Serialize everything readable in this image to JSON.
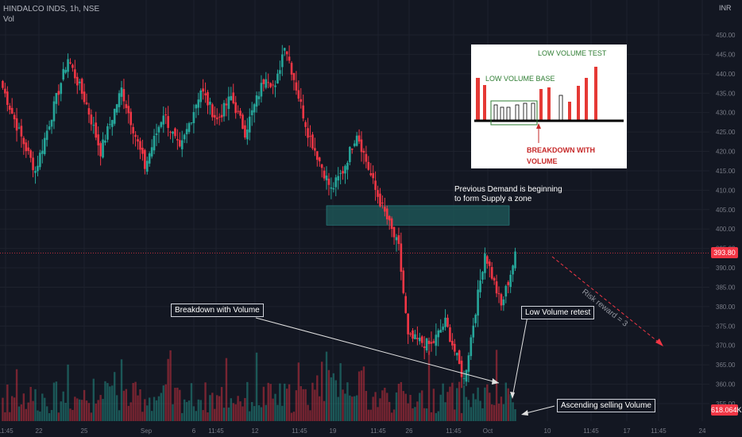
{
  "header": {
    "symbol": "HINDALCO INDS, 1h, NSE",
    "vol_label": "Vol",
    "currency": "INR"
  },
  "price_axis": {
    "ticks": [
      "450.00",
      "445.00",
      "440.00",
      "435.00",
      "430.00",
      "425.00",
      "420.00",
      "415.00",
      "410.00",
      "405.00",
      "400.00",
      "395.00",
      "390.00",
      "385.00",
      "380.00",
      "375.00",
      "370.00",
      "365.00",
      "360.00",
      "355.00"
    ],
    "current_price": "393.80",
    "current_volume": "618.064K"
  },
  "time_axis": {
    "ticks": [
      "11:45",
      "22",
      "25",
      "Sep",
      "6",
      "11:45",
      "12",
      "11:45",
      "19",
      "11:45",
      "26",
      "11:45",
      "Oct",
      "10",
      "11:45",
      "17",
      "11:45",
      "24"
    ]
  },
  "annotations": {
    "breakdown": "Breakdown with Volume",
    "low_volume_retest": "Low Volume retest",
    "ascending_selling": "Ascending selling Volume",
    "previous_demand_line1": "Previous Demand is beginning",
    "previous_demand_line2": "to form Supply a zone",
    "risk_reward": "Risk reward = 3"
  },
  "inset": {
    "title": "LOW VOLUME TEST",
    "base_label": "LOW VOLUME BASE",
    "breakdown_line1": "BREAKDOWN  WITH",
    "breakdown_line2": "VOLUME"
  },
  "colors": {
    "background": "#131722",
    "up": "#26a69a",
    "down": "#f23645",
    "zone": "#1f5c5c",
    "text": "#d1d4dc"
  },
  "chart_data": {
    "type": "candlestick",
    "title": "HINDALCO INDS, 1h, NSE",
    "ylim": [
      352,
      455
    ],
    "segments": [
      {
        "from": 438,
        "to": 425,
        "n": 8
      },
      {
        "from": 425,
        "to": 415,
        "n": 7
      },
      {
        "from": 415,
        "to": 444,
        "n": 14
      },
      {
        "from": 444,
        "to": 432,
        "n": 8
      },
      {
        "from": 432,
        "to": 420,
        "n": 6
      },
      {
        "from": 420,
        "to": 436,
        "n": 9
      },
      {
        "from": 436,
        "to": 416,
        "n": 10
      },
      {
        "from": 416,
        "to": 430,
        "n": 8
      },
      {
        "from": 430,
        "to": 420,
        "n": 7
      },
      {
        "from": 420,
        "to": 436,
        "n": 9
      },
      {
        "from": 436,
        "to": 428,
        "n": 7
      },
      {
        "from": 428,
        "to": 434,
        "n": 6
      },
      {
        "from": 434,
        "to": 425,
        "n": 6
      },
      {
        "from": 425,
        "to": 440,
        "n": 9
      },
      {
        "from": 440,
        "to": 436,
        "n": 4
      },
      {
        "from": 436,
        "to": 448,
        "n": 4
      },
      {
        "from": 448,
        "to": 425,
        "n": 10
      },
      {
        "from": 425,
        "to": 410,
        "n": 10
      },
      {
        "from": 410,
        "to": 415,
        "n": 5
      },
      {
        "from": 415,
        "to": 425,
        "n": 6
      },
      {
        "from": 425,
        "to": 410,
        "n": 8
      },
      {
        "from": 410,
        "to": 395,
        "n": 10
      },
      {
        "from": 395,
        "to": 372,
        "n": 4
      },
      {
        "from": 372,
        "to": 370,
        "n": 10
      },
      {
        "from": 370,
        "to": 376,
        "n": 6
      },
      {
        "from": 376,
        "to": 361,
        "n": 8
      },
      {
        "from": 361,
        "to": 394,
        "n": 9
      },
      {
        "from": 394,
        "to": 380,
        "n": 7
      },
      {
        "from": 380,
        "to": 393,
        "n": 6
      }
    ],
    "supply_zone": [
      401,
      406
    ],
    "current_price": 393.8
  }
}
